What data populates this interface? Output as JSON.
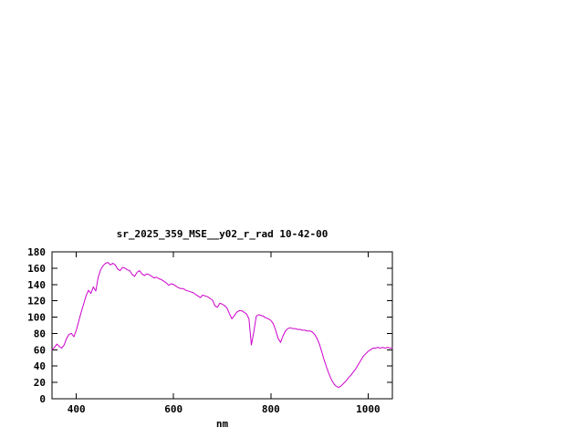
{
  "page": {
    "background": "#ffffff"
  },
  "chart": {
    "title": "sr_2025_359_MSE__y02_r_rad 10-42-00",
    "xlabel": "nm",
    "line_color": "#cc00cc",
    "axis_color": "#000000",
    "text_color": "#000000"
  },
  "chart_data": {
    "type": "line",
    "title": "sr_2025_359_MSE__y02_r_rad 10-42-00",
    "xlabel": "nm",
    "ylabel": "",
    "xlim": [
      350,
      1050
    ],
    "ylim": [
      0,
      180
    ],
    "x_ticks": [
      400,
      600,
      800,
      1000
    ],
    "y_ticks": [
      0,
      20,
      40,
      60,
      80,
      100,
      120,
      140,
      160,
      180
    ],
    "grid": false,
    "legend": "none",
    "series": [
      {
        "name": "sr_2025_359_MSE__y02_r_rad",
        "color": "#cc00cc",
        "x": [
          350,
          355,
          360,
          365,
          370,
          375,
          380,
          385,
          390,
          395,
          400,
          405,
          410,
          415,
          420,
          425,
          430,
          435,
          440,
          445,
          450,
          455,
          460,
          465,
          470,
          475,
          480,
          485,
          490,
          495,
          500,
          505,
          510,
          515,
          520,
          525,
          530,
          535,
          540,
          545,
          550,
          555,
          560,
          565,
          570,
          575,
          580,
          585,
          590,
          595,
          600,
          605,
          610,
          615,
          620,
          625,
          630,
          635,
          640,
          645,
          650,
          655,
          660,
          665,
          670,
          675,
          680,
          685,
          690,
          695,
          700,
          705,
          710,
          715,
          720,
          725,
          730,
          735,
          740,
          745,
          750,
          755,
          760,
          765,
          770,
          775,
          780,
          785,
          790,
          795,
          800,
          805,
          810,
          815,
          820,
          825,
          830,
          835,
          840,
          845,
          850,
          855,
          860,
          865,
          870,
          875,
          880,
          885,
          890,
          895,
          900,
          905,
          910,
          915,
          920,
          925,
          930,
          935,
          940,
          945,
          950,
          955,
          960,
          965,
          970,
          975,
          980,
          985,
          990,
          995,
          1000,
          1005,
          1010,
          1015,
          1020,
          1025,
          1030,
          1035,
          1040,
          1045,
          1050
        ],
        "y": [
          60,
          63,
          67,
          64,
          62,
          66,
          74,
          79,
          80,
          76,
          84,
          95,
          106,
          116,
          126,
          133,
          129,
          137,
          132,
          149,
          158,
          163,
          166,
          167,
          164,
          166,
          164,
          159,
          157,
          161,
          160,
          158,
          157,
          152,
          150,
          155,
          157,
          153,
          151,
          153,
          152,
          150,
          148,
          149,
          147,
          146,
          144,
          142,
          139,
          141,
          140,
          138,
          136,
          135,
          135,
          133,
          132,
          131,
          130,
          128,
          126,
          124,
          127,
          126,
          125,
          123,
          121,
          114,
          112,
          117,
          116,
          114,
          111,
          104,
          98,
          102,
          106,
          108,
          108,
          106,
          104,
          98,
          66,
          82,
          101,
          103,
          102,
          101,
          99,
          98,
          96,
          92,
          84,
          74,
          69,
          77,
          83,
          86,
          87,
          86,
          86,
          85,
          85,
          84,
          84,
          83,
          83,
          82,
          79,
          74,
          67,
          57,
          47,
          38,
          30,
          23,
          18,
          15,
          14,
          16,
          19,
          22,
          26,
          29,
          33,
          37,
          42,
          47,
          52,
          55,
          58,
          60,
          62,
          62,
          63,
          62,
          63,
          62,
          63,
          62,
          62
        ]
      }
    ]
  }
}
